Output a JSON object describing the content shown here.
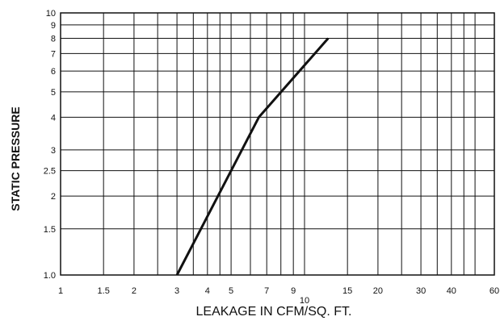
{
  "chart_data": {
    "type": "line",
    "title": "",
    "xlabel": "LEAKAGE IN CFM/SQ. FT.",
    "ylabel": "STATIC PRESSURE",
    "x_scale": "log",
    "y_scale": "log",
    "xlim": [
      1,
      60
    ],
    "ylim": [
      1.0,
      10
    ],
    "grid": true,
    "x_gridlines": [
      1,
      1.5,
      2,
      2.5,
      3,
      3.5,
      4,
      4.5,
      5,
      6,
      7,
      8,
      9,
      10,
      15,
      20,
      25,
      30,
      35,
      40,
      45,
      50,
      60
    ],
    "x_tick_labels": [
      {
        "value": 1,
        "label": "1"
      },
      {
        "value": 1.5,
        "label": "1.5"
      },
      {
        "value": 2,
        "label": "2"
      },
      {
        "value": 3,
        "label": "3"
      },
      {
        "value": 4,
        "label": "4"
      },
      {
        "value": 5,
        "label": "5"
      },
      {
        "value": 7,
        "label": "7"
      },
      {
        "value": 9,
        "label": "9"
      },
      {
        "value": 10,
        "label": "10"
      },
      {
        "value": 15,
        "label": "15"
      },
      {
        "value": 20,
        "label": "20"
      },
      {
        "value": 30,
        "label": "30"
      },
      {
        "value": 40,
        "label": "40"
      },
      {
        "value": 60,
        "label": "60"
      }
    ],
    "y_gridlines": [
      1.0,
      1.5,
      2,
      2.5,
      3,
      4,
      5,
      6,
      7,
      8,
      9,
      10
    ],
    "y_tick_labels": [
      {
        "value": 1.0,
        "label": "1.0"
      },
      {
        "value": 1.5,
        "label": "1.5"
      },
      {
        "value": 2,
        "label": "2"
      },
      {
        "value": 2.5,
        "label": "2.5"
      },
      {
        "value": 3,
        "label": "3"
      },
      {
        "value": 4,
        "label": "4"
      },
      {
        "value": 5,
        "label": "5"
      },
      {
        "value": 6,
        "label": "6"
      },
      {
        "value": 7,
        "label": "7"
      },
      {
        "value": 8,
        "label": "8"
      },
      {
        "value": 9,
        "label": "9"
      },
      {
        "value": 10,
        "label": "10"
      }
    ],
    "series": [
      {
        "x": [
          3.0,
          6.5,
          12.5
        ],
        "y": [
          1.0,
          4.0,
          8.0
        ]
      }
    ],
    "colors": {
      "line": "#111111",
      "grid": "#111111"
    }
  }
}
